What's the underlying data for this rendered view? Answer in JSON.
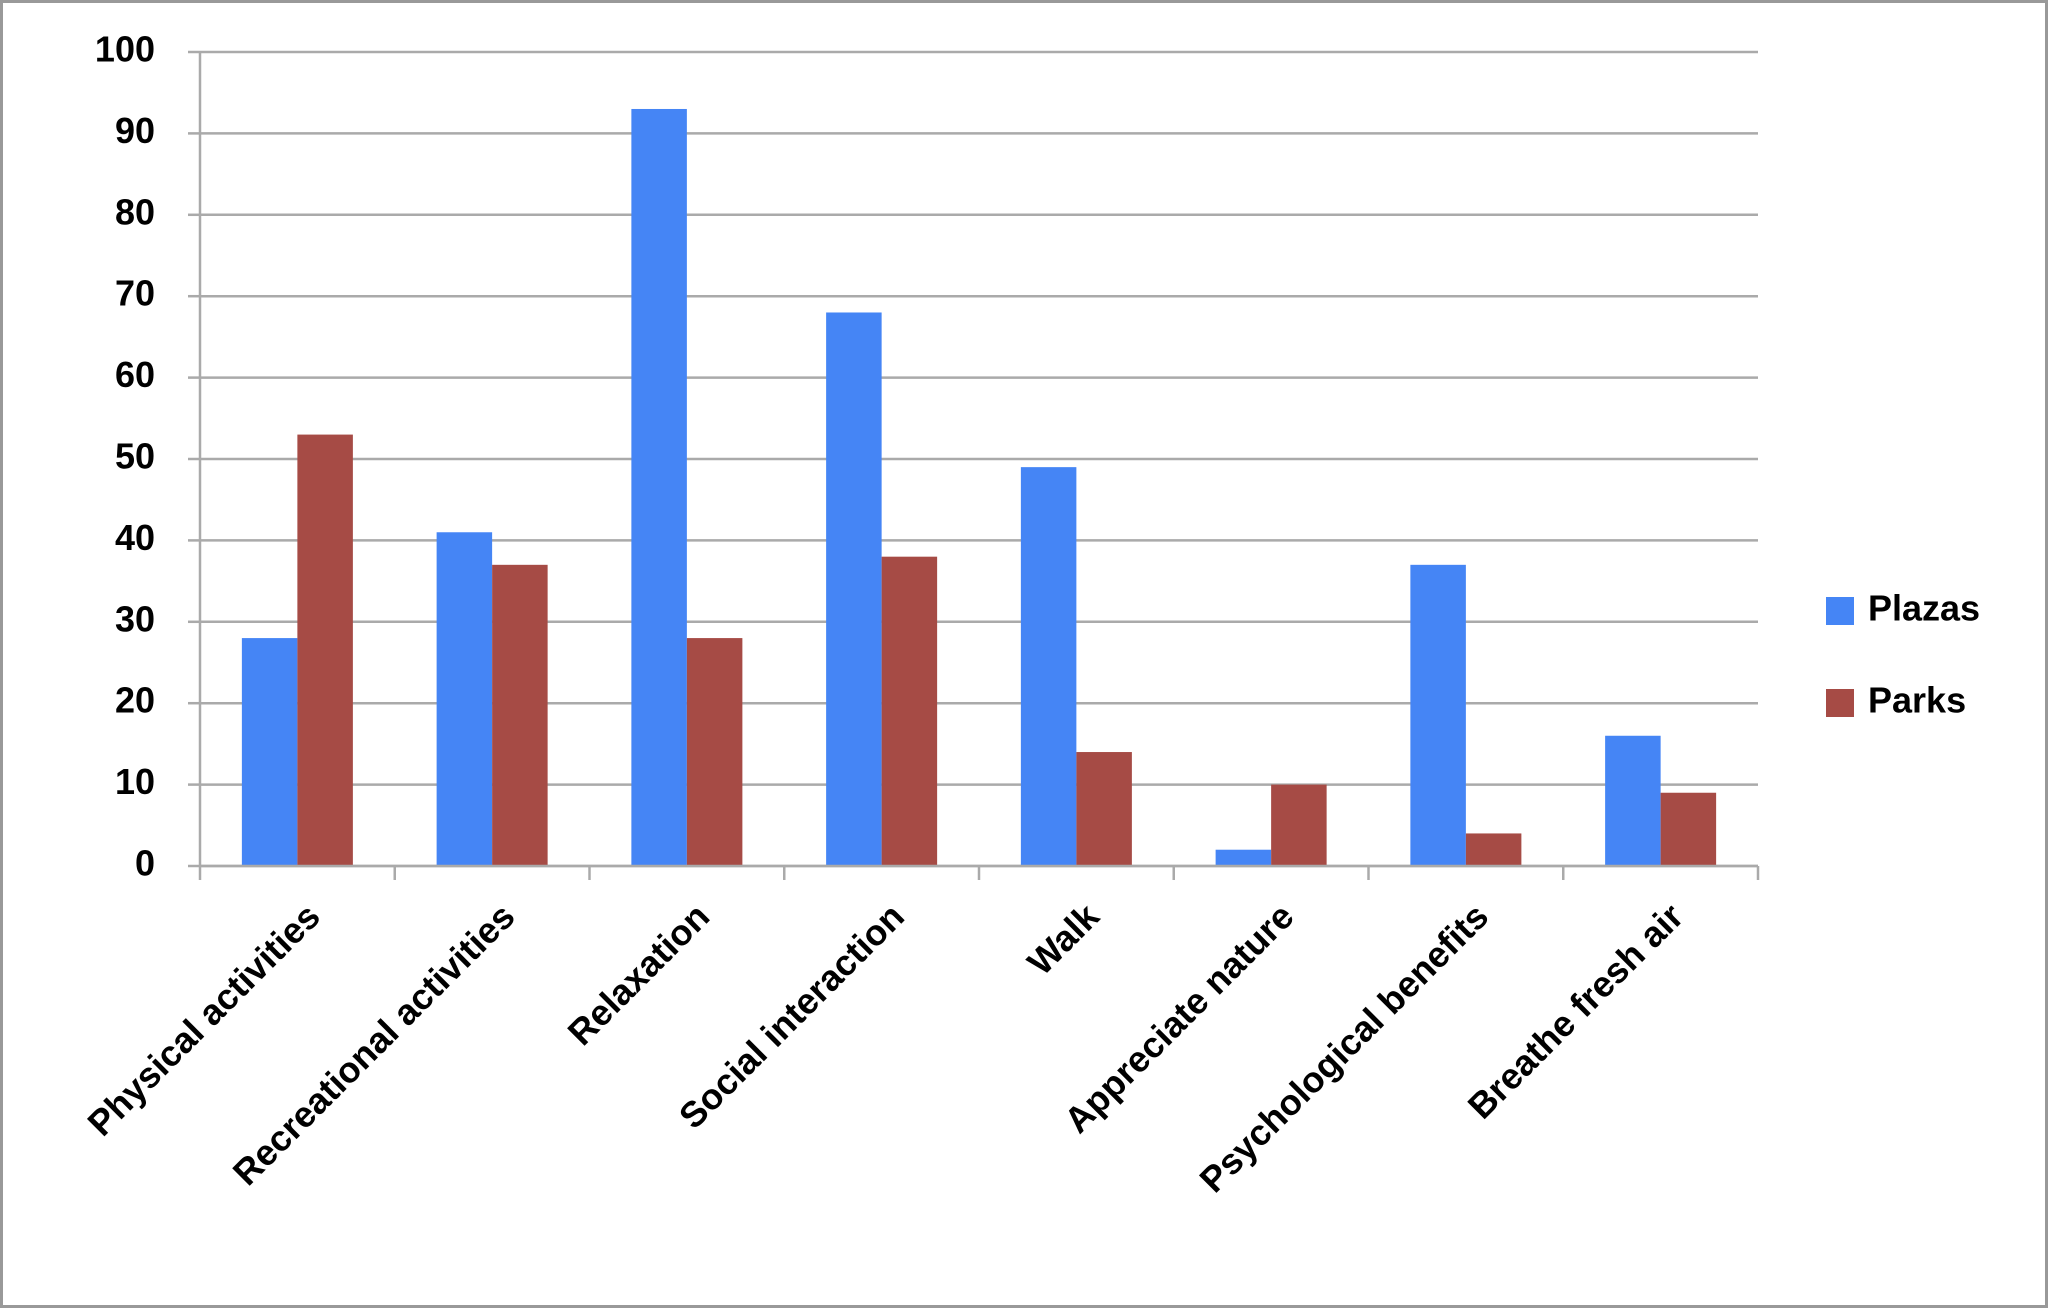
{
  "chart_data": {
    "type": "bar",
    "categories": [
      "Physical activities",
      "Recreational activities",
      "Relaxation",
      "Social interaction",
      "Walk",
      "Appreciate nature",
      "Psychological benefits",
      "Breathe fresh air"
    ],
    "series": [
      {
        "name": "Plazas",
        "color": "#4585f5",
        "values": [
          28,
          41,
          93,
          68,
          49,
          2,
          37,
          16
        ]
      },
      {
        "name": "Parks",
        "color": "#a64b45",
        "values": [
          53,
          37,
          28,
          38,
          14,
          10,
          4,
          9
        ]
      }
    ],
    "ylim": [
      0,
      100
    ],
    "yticks": [
      0,
      10,
      20,
      30,
      40,
      50,
      60,
      70,
      80,
      90,
      100
    ],
    "grid": true,
    "legend": "right"
  }
}
